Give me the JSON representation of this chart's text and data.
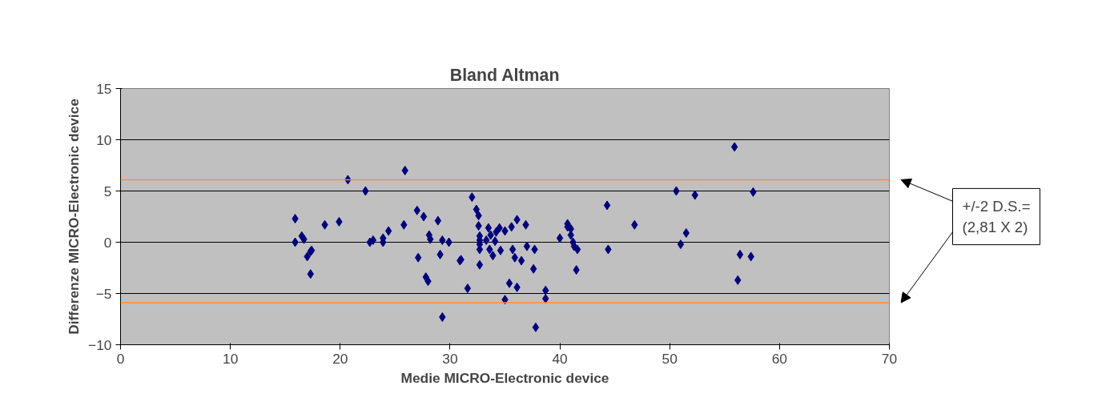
{
  "chart_data": {
    "type": "scatter",
    "title": "Bland Altman",
    "xlabel": "Medie MICRO-Electronic device",
    "ylabel": "Differenze MICRO-Electronic device",
    "annotations": [
      "+/-2 D.S.= (2,81 X 2)"
    ],
    "xlim": [
      0,
      70
    ],
    "xticks": [
      0,
      10,
      20,
      30,
      40,
      50,
      60,
      70
    ],
    "ylim": [
      -10,
      15
    ],
    "yticks": [
      -10,
      -5,
      0,
      5,
      10,
      15
    ],
    "grid": "y",
    "marker": "diamond",
    "ref_lines": [
      {
        "axis": "y",
        "value": 6.1,
        "color": "#ff8c3c"
      },
      {
        "axis": "y",
        "value": -5.9,
        "color": "#ff8c3c"
      }
    ],
    "series": [
      {
        "color": "#000080",
        "x": [
          15.9,
          15.9,
          16.5,
          16.7,
          17.0,
          17.3,
          17.3,
          17.4,
          18.6,
          19.9,
          20.7,
          22.3,
          22.7,
          23.0,
          23.9,
          23.9,
          24.4,
          25.8,
          25.9,
          27.0,
          27.1,
          27.6,
          27.8,
          28.0,
          28.1,
          28.2,
          28.9,
          29.1,
          29.3,
          29.3,
          29.9,
          30.9,
          31.0,
          31.6,
          32.0,
          32.4,
          32.6,
          32.6,
          32.7,
          32.7,
          32.7,
          32.7,
          32.7,
          33.3,
          33.5,
          33.6,
          33.7,
          33.9,
          34.1,
          34.2,
          34.5,
          34.6,
          35.0,
          35.0,
          35.4,
          35.6,
          35.7,
          35.9,
          36.1,
          36.1,
          36.5,
          36.9,
          37.0,
          37.6,
          37.7,
          37.8,
          38.7,
          38.7,
          40.0,
          40.7,
          40.7,
          41.0,
          41.0,
          41.2,
          41.3,
          41.5,
          41.6,
          44.3,
          44.4,
          46.8,
          50.6,
          51.0,
          51.5,
          52.3,
          55.9,
          56.2,
          56.4,
          57.4,
          57.6
        ],
        "values": [
          2.3,
          0.0,
          0.6,
          0.3,
          -1.4,
          -0.9,
          -3.1,
          -0.8,
          1.7,
          2.0,
          6.1,
          5.0,
          0.0,
          0.2,
          0.0,
          0.4,
          1.1,
          1.7,
          7.0,
          3.1,
          -1.5,
          2.5,
          -3.4,
          -3.8,
          0.7,
          0.3,
          2.1,
          -1.2,
          0.2,
          -7.3,
          0.0,
          -1.8,
          -1.7,
          -4.5,
          4.4,
          3.2,
          2.6,
          1.6,
          0.2,
          -0.2,
          -0.7,
          -2.2,
          0.6,
          0.2,
          1.4,
          -0.7,
          0.7,
          -1.3,
          0.1,
          1.0,
          1.4,
          -0.8,
          1.1,
          -5.6,
          -4.0,
          1.5,
          -0.7,
          -1.5,
          -4.4,
          2.2,
          -1.8,
          1.7,
          -0.4,
          -2.6,
          -0.7,
          -8.3,
          -4.7,
          -5.5,
          0.4,
          1.5,
          1.8,
          1.3,
          0.7,
          0.0,
          -0.4,
          -2.7,
          -0.7,
          3.6,
          -0.7,
          1.7,
          5.0,
          -0.2,
          0.9,
          4.6,
          9.3,
          -3.7,
          -1.2,
          -1.4,
          4.9
        ]
      }
    ]
  }
}
